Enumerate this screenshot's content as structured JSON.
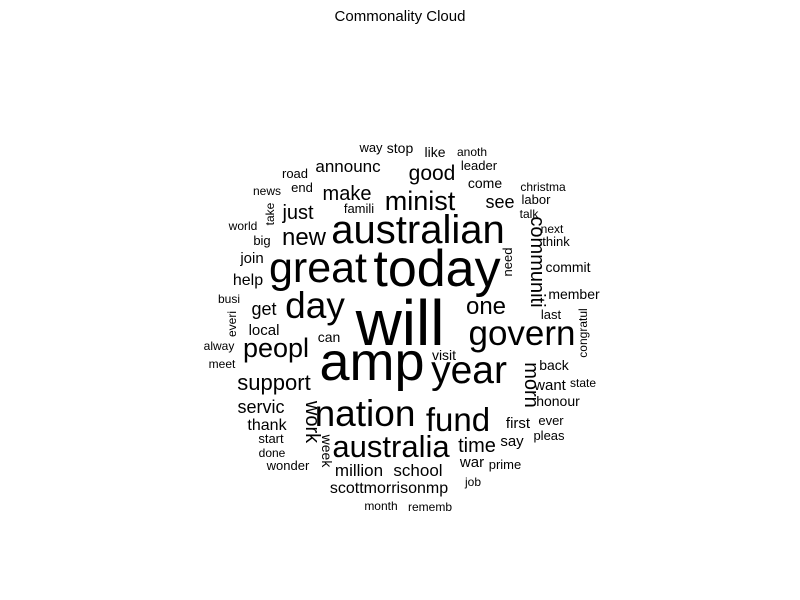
{
  "chart_data": {
    "type": "wordcloud",
    "title": "Commonality Cloud",
    "words": [
      {
        "text": "will",
        "weight": 64
      },
      {
        "text": "amp",
        "weight": 54
      },
      {
        "text": "today",
        "weight": 52
      },
      {
        "text": "great",
        "weight": 43
      },
      {
        "text": "australian",
        "weight": 40
      },
      {
        "text": "year",
        "weight": 39
      },
      {
        "text": "day",
        "weight": 37
      },
      {
        "text": "nation",
        "weight": 37
      },
      {
        "text": "govern",
        "weight": 35
      },
      {
        "text": "fund",
        "weight": 33
      },
      {
        "text": "australia",
        "weight": 31
      },
      {
        "text": "peopl",
        "weight": 27
      },
      {
        "text": "minist",
        "weight": 27
      },
      {
        "text": "new",
        "weight": 24
      },
      {
        "text": "one",
        "weight": 24
      },
      {
        "text": "support",
        "weight": 22
      },
      {
        "text": "good",
        "weight": 21
      },
      {
        "text": "communiti",
        "weight": 20
      },
      {
        "text": "morn",
        "weight": 20
      },
      {
        "text": "time",
        "weight": 20
      },
      {
        "text": "just",
        "weight": 20
      },
      {
        "text": "make",
        "weight": 20
      },
      {
        "text": "work",
        "weight": 20
      },
      {
        "text": "servic",
        "weight": 18
      },
      {
        "text": "get",
        "weight": 18
      },
      {
        "text": "see",
        "weight": 18
      },
      {
        "text": "announc",
        "weight": 17
      },
      {
        "text": "school",
        "weight": 17
      },
      {
        "text": "million",
        "weight": 17
      },
      {
        "text": "scottmorrisonmp",
        "weight": 16
      },
      {
        "text": "thank",
        "weight": 16
      },
      {
        "text": "help",
        "weight": 16
      },
      {
        "text": "local",
        "weight": 15
      },
      {
        "text": "join",
        "weight": 15
      },
      {
        "text": "first",
        "weight": 15
      },
      {
        "text": "war",
        "weight": 15
      },
      {
        "text": "say",
        "weight": 15
      },
      {
        "text": "want",
        "weight": 15
      },
      {
        "text": "visit",
        "weight": 14
      },
      {
        "text": "week",
        "weight": 14
      },
      {
        "text": "back",
        "weight": 14
      },
      {
        "text": "can",
        "weight": 14
      },
      {
        "text": "come",
        "weight": 14
      },
      {
        "text": "like",
        "weight": 14
      },
      {
        "text": "member",
        "weight": 14
      },
      {
        "text": "commit",
        "weight": 14
      },
      {
        "text": "honour",
        "weight": 14
      },
      {
        "text": "stop",
        "weight": 14
      },
      {
        "text": "big",
        "weight": 13
      },
      {
        "text": "leader",
        "weight": 13
      },
      {
        "text": "labor",
        "weight": 13
      },
      {
        "text": "think",
        "weight": 13
      },
      {
        "text": "last",
        "weight": 13
      },
      {
        "text": "way",
        "weight": 13
      },
      {
        "text": "end",
        "weight": 13
      },
      {
        "text": "road",
        "weight": 13
      },
      {
        "text": "famili",
        "weight": 13
      },
      {
        "text": "prime",
        "weight": 13
      },
      {
        "text": "start",
        "weight": 13
      },
      {
        "text": "pleas",
        "weight": 13
      },
      {
        "text": "ever",
        "weight": 13
      },
      {
        "text": "need",
        "weight": 13
      },
      {
        "text": "wonder",
        "weight": 13
      },
      {
        "text": "anoth",
        "weight": 12
      },
      {
        "text": "news",
        "weight": 12
      },
      {
        "text": "world",
        "weight": 12
      },
      {
        "text": "christma",
        "weight": 12
      },
      {
        "text": "next",
        "weight": 12
      },
      {
        "text": "talk",
        "weight": 12
      },
      {
        "text": "take",
        "weight": 12
      },
      {
        "text": "busi",
        "weight": 12
      },
      {
        "text": "everi",
        "weight": 12
      },
      {
        "text": "alway",
        "weight": 12
      },
      {
        "text": "meet",
        "weight": 12
      },
      {
        "text": "congratul",
        "weight": 12
      },
      {
        "text": "state",
        "weight": 12
      },
      {
        "text": "done",
        "weight": 12
      },
      {
        "text": "job",
        "weight": 12
      },
      {
        "text": "month",
        "weight": 12
      },
      {
        "text": "rememb",
        "weight": 12
      }
    ]
  }
}
